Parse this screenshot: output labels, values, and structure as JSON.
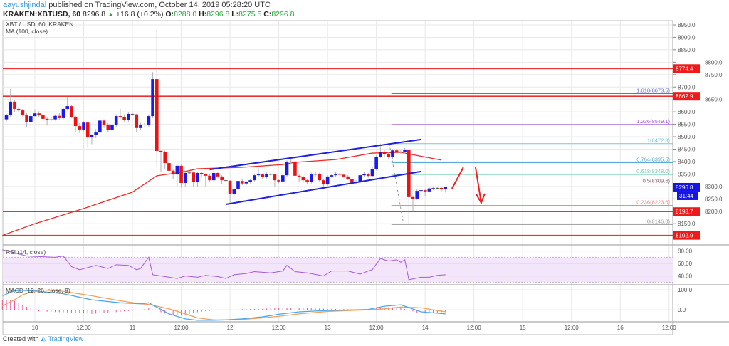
{
  "header": {
    "author": "aayushjindal",
    "published_text": "published on TradingView.com, October 14, 2019 05:28:20 UTC",
    "symbol_line": "KRAKEN:XBTUSD, 60",
    "last_price": "8296.8",
    "change": "+16.8 (+0.2%)",
    "o_label": "O:",
    "o_value": "8288.0",
    "h_label": "H:",
    "h_value": "8296.8",
    "l_label": "L:",
    "l_value": "8275.5",
    "c_label": "C:",
    "c_value": "8296.8"
  },
  "footer": {
    "created_with": "Created with",
    "brand": "TradingView"
  },
  "chart_data": {
    "type": "candlestick",
    "title": "XBT / USD, 60, KRAKEN",
    "indicator_label": "MA (100, close)",
    "candles": {
      "start": "10-09 17:00",
      "interval": "60",
      "ohlc": [
        [
          8570,
          8592,
          8560,
          8586
        ],
        [
          8586,
          8692,
          8580,
          8641
        ],
        [
          8641,
          8648,
          8600,
          8612
        ],
        [
          8612,
          8620,
          8598,
          8606
        ],
        [
          8606,
          8612,
          8578,
          8586
        ],
        [
          8586,
          8595,
          8540,
          8560
        ],
        [
          8560,
          8600,
          8555,
          8583
        ],
        [
          8583,
          8610,
          8578,
          8594
        ],
        [
          8594,
          8602,
          8578,
          8586
        ],
        [
          8586,
          8590,
          8558,
          8572
        ],
        [
          8572,
          8580,
          8545,
          8568
        ],
        [
          8568,
          8578,
          8562,
          8570
        ],
        [
          8570,
          8590,
          8565,
          8584
        ],
        [
          8584,
          8595,
          8568,
          8575
        ],
        [
          8575,
          8618,
          8570,
          8612
        ],
        [
          8612,
          8660,
          8605,
          8623
        ],
        [
          8623,
          8628,
          8575,
          8580
        ],
        [
          8580,
          8585,
          8520,
          8543
        ],
        [
          8543,
          8555,
          8515,
          8529
        ],
        [
          8529,
          8562,
          8522,
          8557
        ],
        [
          8557,
          8562,
          8460,
          8497
        ],
        [
          8497,
          8510,
          8470,
          8506
        ],
        [
          8506,
          8530,
          8495,
          8517
        ],
        [
          8517,
          8570,
          8510,
          8565
        ],
        [
          8565,
          8570,
          8535,
          8549
        ],
        [
          8549,
          8555,
          8518,
          8526
        ],
        [
          8526,
          8558,
          8520,
          8549
        ],
        [
          8549,
          8590,
          8540,
          8583
        ],
        [
          8583,
          8612,
          8570,
          8580
        ],
        [
          8580,
          8590,
          8560,
          8568
        ],
        [
          8568,
          8598,
          8560,
          8592
        ],
        [
          8592,
          8595,
          8585,
          8590
        ],
        [
          8590,
          8592,
          8520,
          8535
        ],
        [
          8535,
          8556,
          8528,
          8549
        ],
        [
          8549,
          8555,
          8538,
          8546
        ],
        [
          8546,
          8590,
          8540,
          8583
        ],
        [
          8583,
          8760,
          8575,
          8732
        ],
        [
          8732,
          8930,
          8380,
          8443
        ],
        [
          8443,
          8448,
          8360,
          8440
        ],
        [
          8440,
          8445,
          8370,
          8394
        ],
        [
          8394,
          8400,
          8340,
          8363
        ],
        [
          8363,
          8370,
          8330,
          8348
        ],
        [
          8348,
          8390,
          8300,
          8383
        ],
        [
          8383,
          8388,
          8295,
          8314
        ],
        [
          8314,
          8360,
          8300,
          8354
        ],
        [
          8354,
          8362,
          8348,
          8356
        ],
        [
          8356,
          8360,
          8300,
          8317
        ],
        [
          8317,
          8360,
          8300,
          8354
        ],
        [
          8354,
          8358,
          8340,
          8350
        ],
        [
          8350,
          8352,
          8300,
          8343
        ],
        [
          8343,
          8350,
          8320,
          8325
        ],
        [
          8325,
          8372,
          8318,
          8354
        ],
        [
          8354,
          8360,
          8335,
          8340
        ],
        [
          8340,
          8345,
          8310,
          8325
        ],
        [
          8325,
          8330,
          8318,
          8323
        ],
        [
          8323,
          8325,
          8228,
          8271
        ],
        [
          8271,
          8295,
          8262,
          8288
        ],
        [
          8288,
          8328,
          8280,
          8322
        ],
        [
          8322,
          8330,
          8305,
          8312
        ],
        [
          8312,
          8322,
          8305,
          8318
        ],
        [
          8318,
          8330,
          8312,
          8325
        ],
        [
          8325,
          8352,
          8320,
          8345
        ],
        [
          8345,
          8372,
          8340,
          8348
        ],
        [
          8348,
          8352,
          8330,
          8338
        ],
        [
          8338,
          8356,
          8332,
          8350
        ],
        [
          8350,
          8355,
          8342,
          8348
        ],
        [
          8348,
          8352,
          8300,
          8325
        ],
        [
          8325,
          8330,
          8312,
          8320
        ],
        [
          8320,
          8350,
          8315,
          8345
        ],
        [
          8345,
          8405,
          8340,
          8397
        ],
        [
          8397,
          8408,
          8390,
          8400
        ],
        [
          8400,
          8405,
          8335,
          8343
        ],
        [
          8343,
          8348,
          8320,
          8338
        ],
        [
          8338,
          8342,
          8315,
          8325
        ],
        [
          8325,
          8332,
          8310,
          8318
        ],
        [
          8318,
          8355,
          8312,
          8348
        ],
        [
          8348,
          8360,
          8340,
          8350
        ],
        [
          8350,
          8355,
          8320,
          8325
        ],
        [
          8325,
          8332,
          8300,
          8308
        ],
        [
          8308,
          8345,
          8303,
          8340
        ],
        [
          8340,
          8350,
          8335,
          8345
        ],
        [
          8345,
          8360,
          8340,
          8350
        ],
        [
          8350,
          8355,
          8340,
          8347
        ],
        [
          8347,
          8350,
          8335,
          8340
        ],
        [
          8340,
          8345,
          8325,
          8330
        ],
        [
          8330,
          8335,
          8310,
          8315
        ],
        [
          8315,
          8325,
          8310,
          8318
        ],
        [
          8318,
          8350,
          8312,
          8345
        ],
        [
          8345,
          8358,
          8340,
          8350
        ],
        [
          8350,
          8355,
          8335,
          8342
        ],
        [
          8342,
          8378,
          8338,
          8371
        ],
        [
          8371,
          8425,
          8365,
          8420
        ],
        [
          8420,
          8472.3,
          8415,
          8437
        ],
        [
          8437,
          8445,
          8420,
          8430
        ],
        [
          8430,
          8438,
          8408,
          8418
        ],
        [
          8418,
          8450,
          8410,
          8445
        ],
        [
          8445,
          8452,
          8432,
          8440
        ],
        [
          8440,
          8446,
          8430,
          8438
        ],
        [
          8438,
          8455,
          8432,
          8447
        ],
        [
          8447,
          8450,
          8146.8,
          8257
        ],
        [
          8257,
          8262,
          8200,
          8251
        ],
        [
          8251,
          8290,
          8246,
          8282
        ],
        [
          8282,
          8320,
          8275,
          8285
        ],
        [
          8285,
          8290,
          8262,
          8280
        ],
        [
          8280,
          8300,
          8276,
          8292
        ],
        [
          8292,
          8300,
          8285,
          8294
        ],
        [
          8294,
          8300,
          8288,
          8294
        ],
        [
          8294,
          8298,
          8280,
          8288
        ],
        [
          8288,
          8296.8,
          8275.5,
          8296.8
        ]
      ]
    },
    "ma_100": [
      [
        "10-09 16:00",
        8103
      ],
      [
        "10-10 00:00",
        8150
      ],
      [
        "10-10 12:00",
        8211
      ],
      [
        "10-11 00:00",
        8277
      ],
      [
        "10-11 06:00",
        8343
      ],
      [
        "10-11 12:00",
        8357
      ],
      [
        "10-11 16:00",
        8371
      ],
      [
        "10-12 03:00",
        8377
      ],
      [
        "10-12 13:00",
        8388
      ],
      [
        "10-12 16:00",
        8397
      ],
      [
        "10-13 02:00",
        8408
      ],
      [
        "10-13 11:00",
        8434
      ],
      [
        "10-13 18:00",
        8437
      ],
      [
        "10-14 04:00",
        8406
      ]
    ],
    "horizontal_levels": [
      8774.4,
      8662.9,
      8198.7,
      8102.9
    ],
    "channel": {
      "upper": [
        [
          "10-11 19:00",
          8368
        ],
        [
          "10-13 23:00",
          8489
        ]
      ],
      "lower": [
        [
          "10-11 23:00",
          8228
        ],
        [
          "10-13 23:00",
          8360
        ]
      ]
    },
    "fibonacci": {
      "start": "10-13 15:42",
      "trend": [
        [
          "10-13 15:12",
          8472.3
        ],
        [
          "10-13 18:42",
          8146.8
        ]
      ],
      "levels": [
        {
          "label": "1.618(8673.5)",
          "price": 8673.5,
          "color": "#6b6bd8"
        },
        {
          "label": "1.236(8549.1)",
          "price": 8549.1,
          "color": "#a55ad6"
        },
        {
          "label": "1(8472.3)",
          "price": 8472.3,
          "color": "#7cc2e0"
        },
        {
          "label": "0.764(8395.5)",
          "price": 8395.5,
          "color": "#5aaad8"
        },
        {
          "label": "0.618(8348.0)",
          "price": 8348.0,
          "color": "#6fd1ae"
        },
        {
          "label": "0.5(8309.6)",
          "price": 8309.6,
          "color": "#8b5a6a"
        },
        {
          "label": "0.236(8223.6)",
          "price": 8223.6,
          "color": "#f08a8a"
        },
        {
          "label": "0(8146.8)",
          "price": 8146.8,
          "color": "#9a9a9a"
        }
      ]
    },
    "annotations": {
      "up_line": [
        [
          "10-14 06:36",
          8291
        ],
        [
          "10-14 09:24",
          8377
        ]
      ],
      "down_arrow": [
        [
          "10-14 12:24",
          8377
        ],
        [
          "10-14 13:48",
          8234
        ]
      ]
    },
    "price_axis": {
      "ticks": [
        "8150.0",
        "8200.0",
        "8250.0",
        "8300.0",
        "8350.0",
        "8400.0",
        "8450.0",
        "8500.0",
        "8550.0",
        "8600.0",
        "8650.0",
        "8700.0",
        "8750.0",
        "8800.0",
        "8850.0",
        "8900.0",
        "8950.0"
      ],
      "tags": [
        {
          "text": "8774.4",
          "price": 8774.4,
          "color": "#f01a1a"
        },
        {
          "text": "8662.9",
          "price": 8662.9,
          "color": "#f01a1a"
        },
        {
          "text": "8296.8",
          "price": 8296.8,
          "color": "#1515e8"
        },
        {
          "text": "8198.7",
          "price": 8198.7,
          "color": "#f01a1a"
        },
        {
          "text": "8102.9",
          "price": 8102.9,
          "color": "#f01a1a"
        }
      ],
      "countdown": "31:44"
    },
    "time_axis": [
      "10",
      "12:00",
      "11",
      "12:00",
      "12",
      "12:00",
      "13",
      "12:00",
      "14",
      "12:00",
      "15",
      "12:00",
      "16",
      "12:00"
    ],
    "rsi": {
      "label": "RSI (14, close)",
      "ticks": [
        "80.00",
        "60.00",
        "40.00"
      ],
      "band": [
        30,
        70
      ],
      "values": [
        [
          "10-09 16:00",
          82
        ],
        [
          "10-09 22:00",
          72
        ],
        [
          "10-10 05:00",
          70
        ],
        [
          "10-10 07:00",
          72
        ],
        [
          "10-10 09:00",
          55
        ],
        [
          "10-10 11:00",
          50
        ],
        [
          "10-10 15:00",
          57
        ],
        [
          "10-10 18:00",
          52
        ],
        [
          "10-10 20:00",
          58
        ],
        [
          "10-10 23:00",
          57
        ],
        [
          "10-11 01:00",
          50
        ],
        [
          "10-11 02:00",
          52
        ],
        [
          "10-11 04:00",
          70
        ],
        [
          "10-11 05:00",
          42
        ],
        [
          "10-11 09:00",
          38
        ],
        [
          "10-11 11:00",
          36
        ],
        [
          "10-11 13:00",
          40
        ],
        [
          "10-11 16:00",
          38
        ],
        [
          "10-11 18:00",
          41
        ],
        [
          "10-11 21:00",
          39
        ],
        [
          "10-11 23:00",
          36
        ],
        [
          "10-12 01:00",
          42
        ],
        [
          "10-12 04:00",
          44
        ],
        [
          "10-12 06:00",
          47
        ],
        [
          "10-12 10:00",
          45
        ],
        [
          "10-12 13:00",
          48
        ],
        [
          "10-12 14:00",
          57
        ],
        [
          "10-12 16:00",
          47
        ],
        [
          "10-12 19:00",
          45
        ],
        [
          "10-12 23:00",
          40
        ],
        [
          "10-13 01:00",
          48
        ],
        [
          "10-13 05:00",
          48
        ],
        [
          "10-13 08:00",
          43
        ],
        [
          "10-13 10:00",
          48
        ],
        [
          "10-13 11:00",
          50
        ],
        [
          "10-13 13:00",
          68
        ],
        [
          "10-13 15:00",
          64
        ],
        [
          "10-13 17:00",
          66
        ],
        [
          "10-13 18:00",
          62
        ],
        [
          "10-13 19:00",
          66
        ],
        [
          "10-13 20:00",
          34
        ],
        [
          "10-13 23:00",
          38
        ],
        [
          "10-14 01:00",
          38
        ],
        [
          "10-14 03:00",
          41
        ],
        [
          "10-14 05:00",
          42
        ]
      ]
    },
    "macd": {
      "label": "MACD (12, 26, close, 9)",
      "ticks": [
        "100.0",
        "0.0"
      ],
      "values": [
        [
          "10-09 16:00",
          70,
          20
        ],
        [
          "10-09 19:00",
          95,
          50
        ],
        [
          "10-09 21:00",
          97,
          75
        ],
        [
          "10-10 01:00",
          92,
          100
        ],
        [
          "10-10 07:00",
          80,
          92
        ],
        [
          "10-10 14:00",
          50,
          70
        ],
        [
          "10-10 21:00",
          35,
          45
        ],
        [
          "10-11 02:00",
          30,
          30
        ],
        [
          "10-11 04:00",
          35,
          27
        ],
        [
          "10-11 09:00",
          -20,
          5
        ],
        [
          "10-11 13:00",
          -45,
          -20
        ],
        [
          "10-11 16:00",
          -52,
          -40
        ],
        [
          "10-11 20:00",
          -52,
          -50
        ],
        [
          "10-11 23:00",
          -50,
          -50
        ],
        [
          "10-12 03:00",
          -45,
          -48
        ],
        [
          "10-12 08:00",
          -35,
          -40
        ],
        [
          "10-12 12:00",
          -22,
          -32
        ],
        [
          "10-12 17:00",
          -10,
          -20
        ],
        [
          "10-13 00:00",
          -3,
          -8
        ],
        [
          "10-13 07:00",
          0,
          -2
        ],
        [
          "10-13 10:00",
          2,
          0
        ],
        [
          "10-13 14:00",
          18,
          5
        ],
        [
          "10-13 18:00",
          25,
          14
        ],
        [
          "10-13 23:00",
          -10,
          10
        ],
        [
          "10-14 05:00",
          -20,
          -10
        ]
      ]
    },
    "colors": {
      "up": "#1a1af0",
      "down": "#f01010",
      "ma": "#f02a2a",
      "channel": "#2020e0",
      "rsi": "#a55ad6",
      "rsi_band": "#f3e6fb",
      "macd": "#4aa8f0",
      "signal": "#f5a05a",
      "histogram": "#f0509a",
      "grid": "#e8e8e8"
    }
  }
}
